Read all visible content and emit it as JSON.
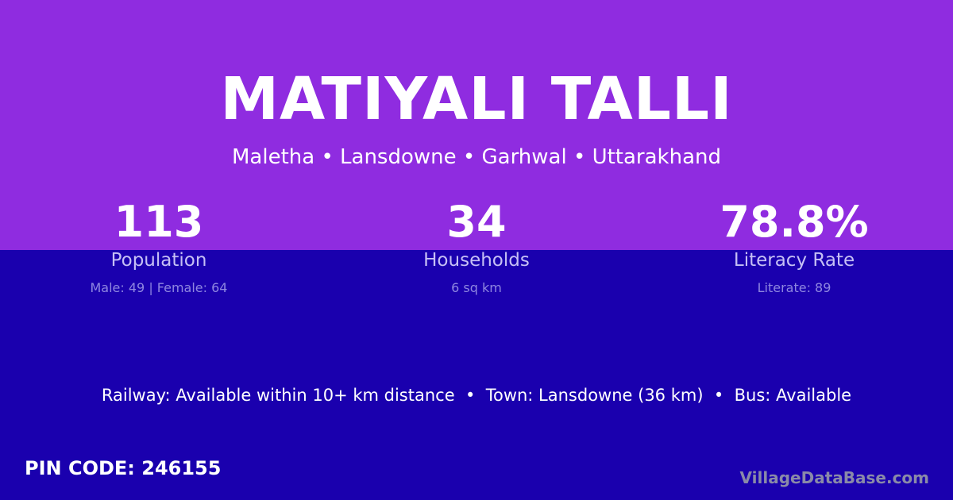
{
  "village_name": "MATIYALI TALLI",
  "location": "Maletha • Lansdowne • Garhwal • Uttarakhand",
  "stats": [
    {
      "value": "113",
      "label": "Population",
      "detail": "Male: 49 | Female: 64"
    },
    {
      "value": "34",
      "label": "Households",
      "detail": "6 sq km"
    },
    {
      "value": "78.8%",
      "label": "Literacy Rate",
      "detail": "Literate: 89"
    }
  ],
  "connectivity": "Railway: Available within 10+ km distance  •  Town: Lansdowne (36 km)  •  Bus: Available",
  "pin_code": "PIN CODE: 246155",
  "brand": "VillageDataBase.com",
  "colors": {
    "top_background": "#8f2ce0",
    "bottom_background": "#1a00ae"
  }
}
